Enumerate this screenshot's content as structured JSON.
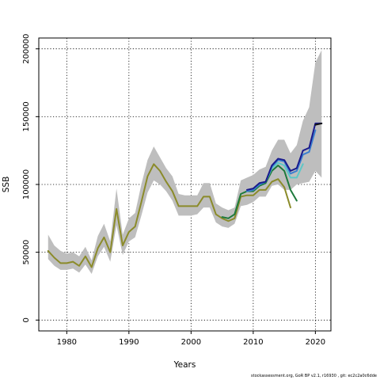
{
  "footer_text": "stockassessment.org, GoR BP v2.1, r16930 , git: ec2c2a0c6dde",
  "chart_data": {
    "type": "line",
    "xlabel": "Years",
    "ylabel": "SSB",
    "xlim": [
      1975.5,
      2022.5
    ],
    "ylim": [
      -8000,
      208000
    ],
    "x_ticks": [
      1980,
      1990,
      2000,
      2010,
      2020
    ],
    "y_ticks": [
      0,
      50000,
      100000,
      150000,
      200000
    ],
    "grid": "dotted",
    "band": {
      "color": "#bebebe",
      "x": [
        1977,
        1978,
        1979,
        1980,
        1981,
        1982,
        1983,
        1984,
        1985,
        1986,
        1987,
        1988,
        1989,
        1990,
        1991,
        1992,
        1993,
        1994,
        1995,
        1996,
        1997,
        1998,
        1999,
        2000,
        2001,
        2002,
        2003,
        2004,
        2005,
        2006,
        2007,
        2008,
        2009,
        2010,
        2011,
        2012,
        2013,
        2014,
        2015,
        2016,
        2017,
        2018,
        2019,
        2020,
        2021
      ],
      "lower": [
        45000,
        40000,
        37000,
        37000,
        38000,
        35000,
        41000,
        34000,
        47000,
        54000,
        43000,
        70000,
        48000,
        58000,
        61000,
        77000,
        94000,
        103000,
        100000,
        95000,
        88000,
        77000,
        77000,
        77000,
        78000,
        83000,
        83000,
        72000,
        69000,
        68000,
        71000,
        84000,
        85000,
        87000,
        91000,
        91000,
        99000,
        100000,
        96000,
        96000,
        100000,
        101000,
        102000,
        110000,
        105000
      ],
      "upper": [
        63000,
        55000,
        51000,
        49000,
        50000,
        47000,
        54000,
        44000,
        62000,
        71000,
        58000,
        97000,
        63000,
        75000,
        79000,
        100000,
        118000,
        128000,
        120000,
        112000,
        106000,
        93000,
        92000,
        92000,
        92000,
        101000,
        101000,
        86000,
        83000,
        81000,
        83000,
        103000,
        105000,
        107000,
        111000,
        113000,
        125000,
        133000,
        133000,
        123000,
        129000,
        147000,
        157000,
        190000,
        199000
      ]
    },
    "series": [
      {
        "color": "#8b8b2a",
        "x": [
          1977,
          1978,
          1979,
          1980,
          1981,
          1982,
          1983,
          1984,
          1985,
          1986,
          1987,
          1988,
          1989,
          1990,
          1991,
          1992,
          1993,
          1994,
          1995,
          1996,
          1997,
          1998,
          1999,
          2000,
          2001,
          2002,
          2003,
          2004,
          2005,
          2006,
          2007,
          2008,
          2009,
          2010,
          2011,
          2012,
          2013,
          2014,
          2015,
          2016
        ],
        "values": [
          51000,
          46000,
          42000,
          42000,
          43000,
          40000,
          47000,
          39000,
          53000,
          61000,
          50000,
          82000,
          55000,
          65000,
          69000,
          87000,
          106000,
          115000,
          110000,
          102000,
          95000,
          84000,
          84000,
          84000,
          84000,
          91000,
          91000,
          78000,
          75000,
          73000,
          75000,
          91000,
          92000,
          92000,
          96000,
          96000,
          102000,
          104000,
          98000,
          83000
        ]
      },
      {
        "color": "#1e7a3c",
        "x": [
          2005,
          2006,
          2007,
          2008,
          2009,
          2010,
          2011,
          2012,
          2013,
          2014,
          2015,
          2016,
          2017
        ],
        "values": [
          76000,
          75000,
          78000,
          93000,
          95000,
          95000,
          99000,
          101000,
          110000,
          114000,
          110000,
          96000,
          88000
        ]
      },
      {
        "color": "#5cc8c8",
        "x": [
          2009,
          2010,
          2011,
          2012,
          2013,
          2014,
          2015,
          2016,
          2017,
          2018
        ],
        "values": [
          95000,
          96000,
          100000,
          102000,
          112000,
          116000,
          114000,
          105000,
          105000,
          115000
        ]
      },
      {
        "color": "#3a7fd0",
        "x": [
          2009,
          2010,
          2011,
          2012,
          2013,
          2014,
          2015,
          2016,
          2017,
          2018,
          2019,
          2020
        ],
        "values": [
          95000,
          96000,
          100000,
          102000,
          113000,
          118000,
          117000,
          108000,
          110000,
          122000,
          124000,
          140000
        ]
      },
      {
        "color": "#1a1a8c",
        "x": [
          2009,
          2010,
          2011,
          2012,
          2013,
          2014,
          2015,
          2016,
          2017,
          2018,
          2019,
          2020,
          2021
        ],
        "values": [
          96000,
          97000,
          101000,
          102000,
          114000,
          119000,
          118000,
          110000,
          112000,
          125000,
          127000,
          145000,
          145000
        ]
      },
      {
        "color": "#111111",
        "x": [
          2020,
          2021
        ],
        "values": [
          144000,
          145000
        ]
      }
    ]
  }
}
